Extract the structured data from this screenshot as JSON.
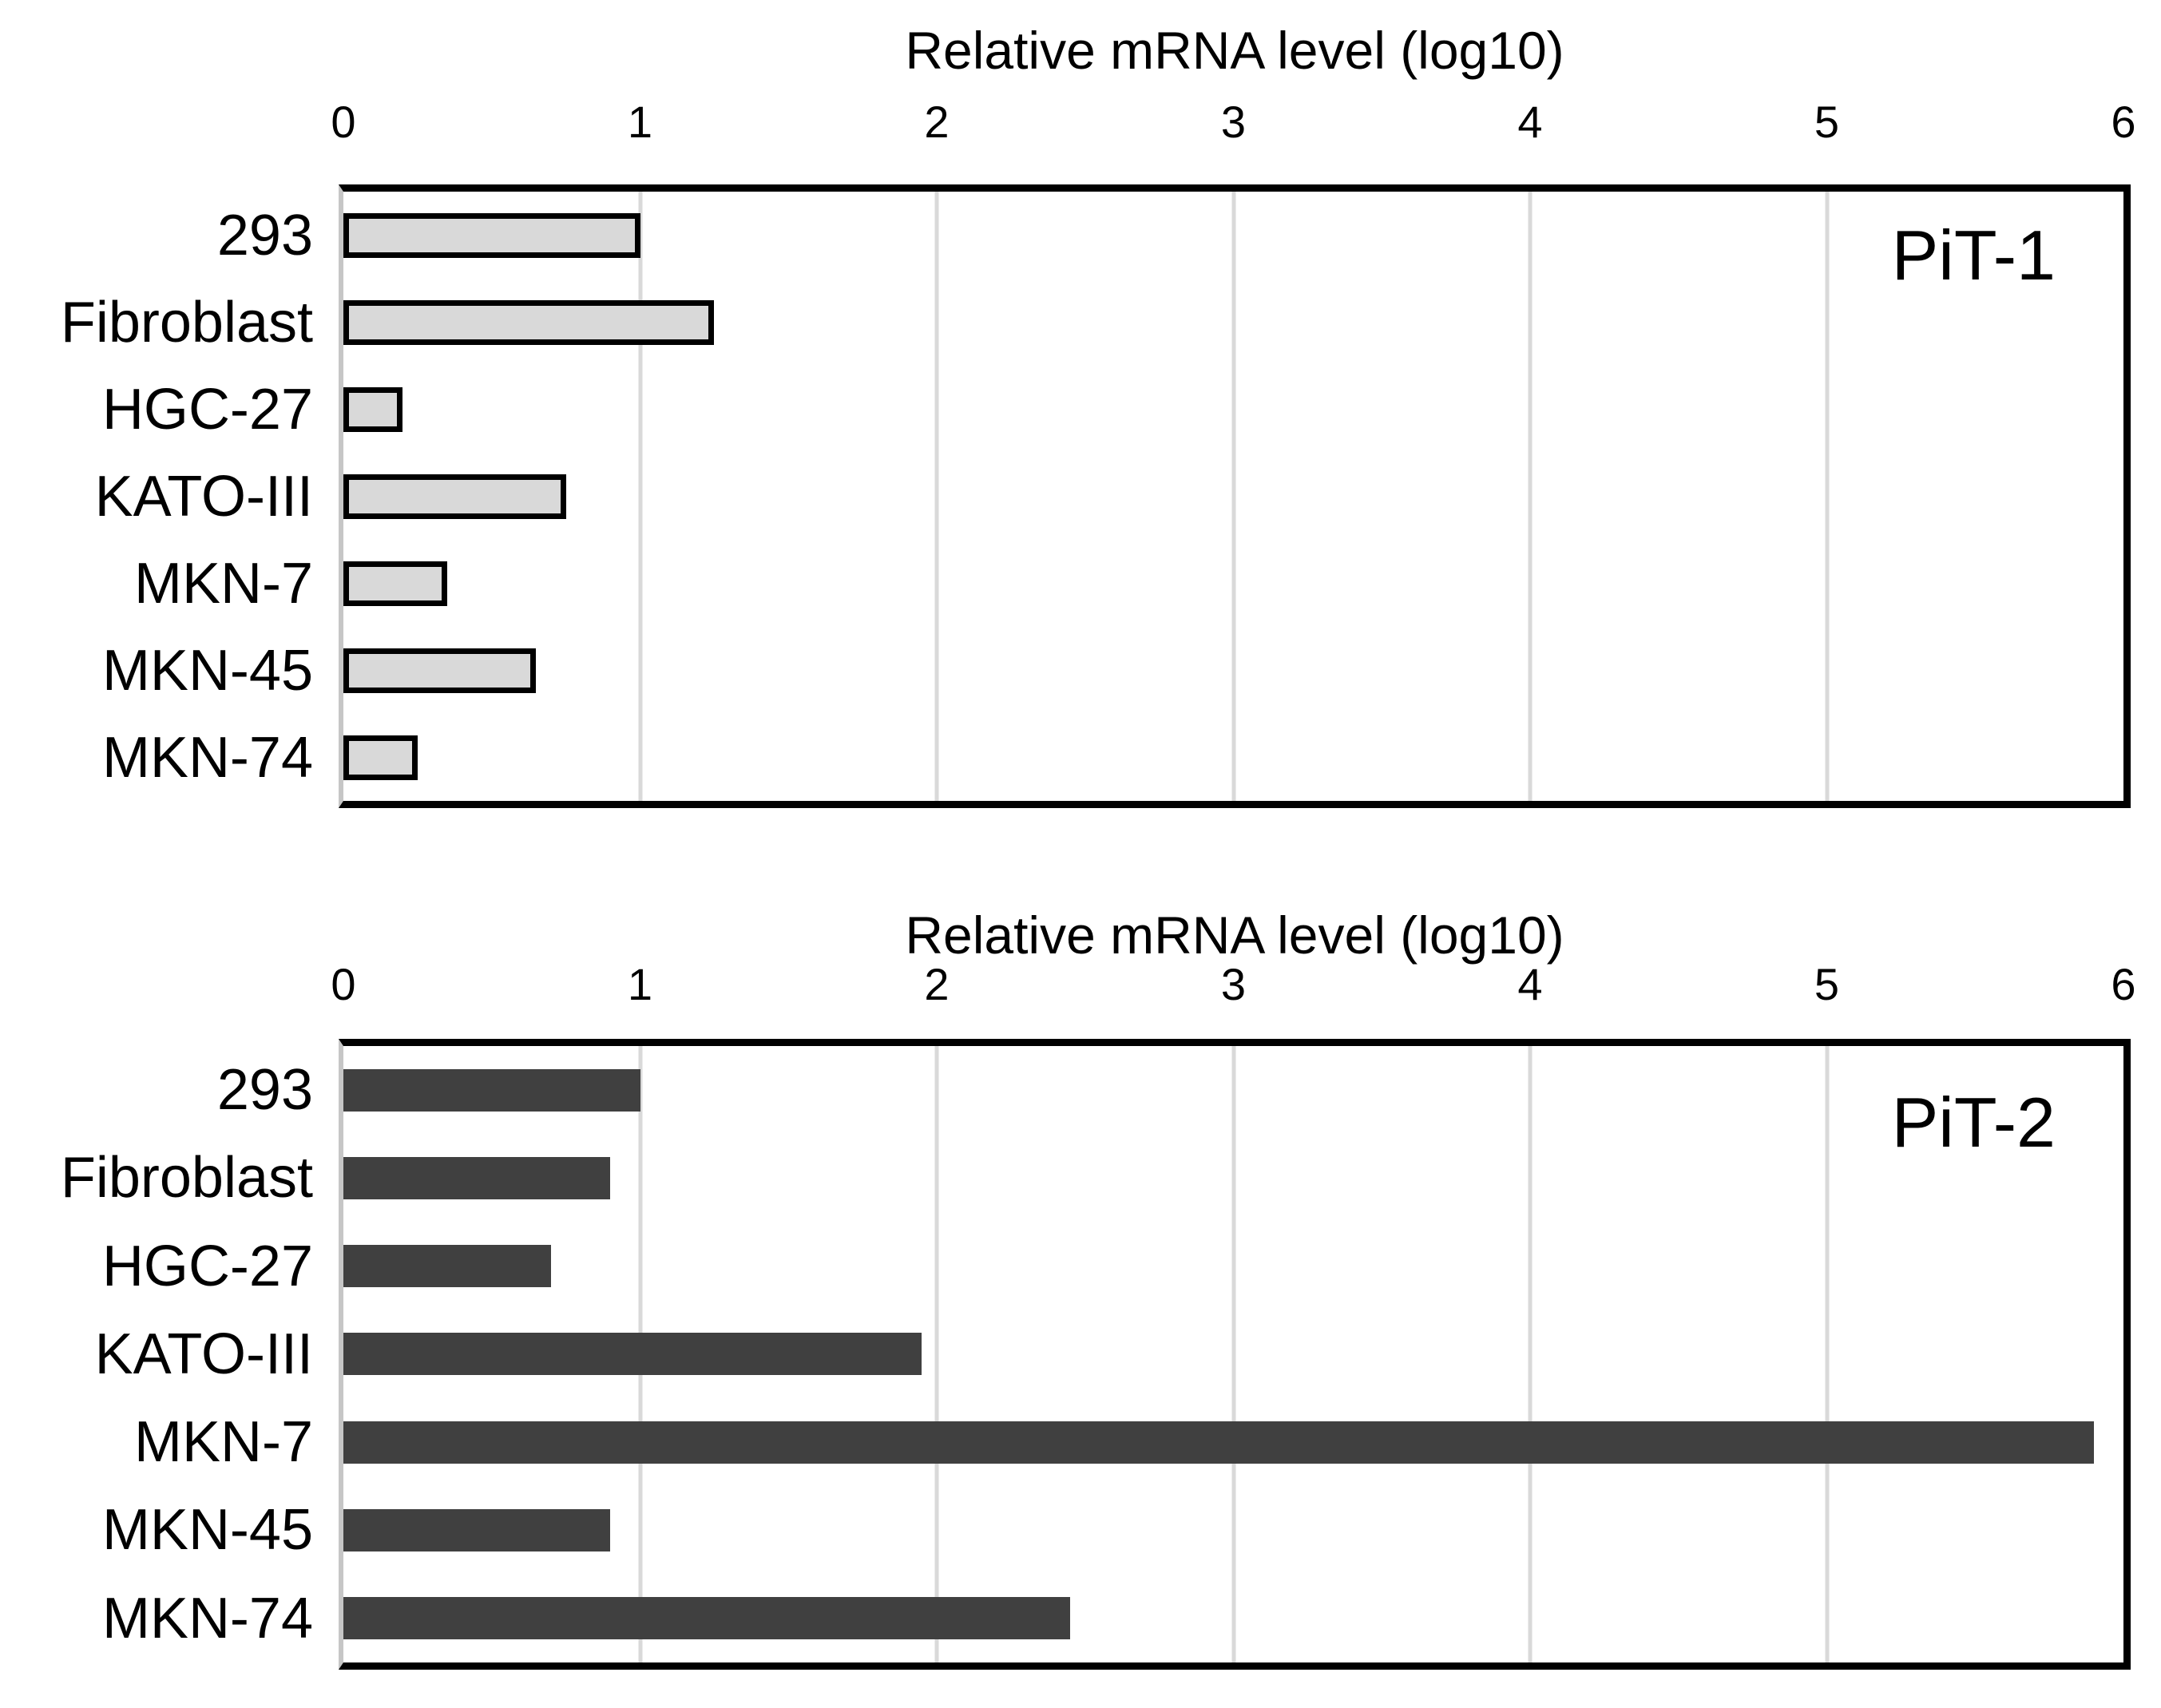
{
  "figure": {
    "background": "#ffffff",
    "text_color": "#000000",
    "axis_line_color": "#c6c6c6",
    "gridline_color": "#d9d9d9",
    "frame_color": "#000000"
  },
  "chart_data": [
    {
      "type": "bar",
      "orientation": "horizontal",
      "title": "Relative mRNA level (log10)",
      "panel_label": "PiT-1",
      "xlabel": "Relative mRNA level (log10)",
      "ylabel": "",
      "xlim": [
        0,
        6
      ],
      "xticks": [
        "0",
        "1",
        "2",
        "3",
        "4",
        "5",
        "6"
      ],
      "grid": "vertical major gridlines on",
      "legend": "none",
      "categories": [
        "293",
        "Fibroblast",
        "HGC-27",
        "KATO-III",
        "MKN-7",
        "MKN-45",
        "MKN-74"
      ],
      "values": [
        1.0,
        1.25,
        0.2,
        0.75,
        0.35,
        0.65,
        0.25
      ],
      "bar_fill": "#d9d9d9",
      "bar_border": "#000000"
    },
    {
      "type": "bar",
      "orientation": "horizontal",
      "title": "Relative mRNA level (log10)",
      "panel_label": "PiT-2",
      "xlabel": "Relative mRNA level (log10)",
      "ylabel": "",
      "xlim": [
        0,
        6
      ],
      "xticks": [
        "0",
        "1",
        "2",
        "3",
        "4",
        "5",
        "6"
      ],
      "grid": "vertical major gridlines on",
      "legend": "none",
      "categories": [
        "293",
        "Fibroblast",
        "HGC-27",
        "KATO-III",
        "MKN-7",
        "MKN-45",
        "MKN-74"
      ],
      "values": [
        1.0,
        0.9,
        0.7,
        1.95,
        5.9,
        0.9,
        2.45
      ],
      "bar_fill": "#404040",
      "bar_border": "none"
    }
  ]
}
